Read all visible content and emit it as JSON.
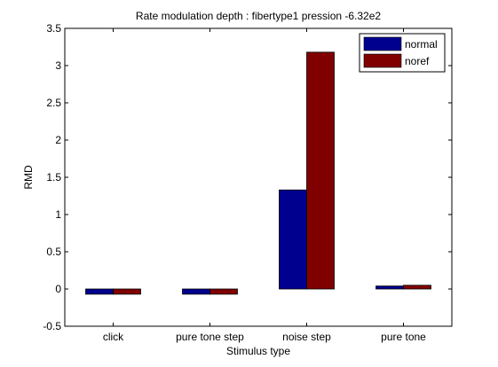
{
  "chart_data": {
    "type": "bar",
    "title": "Rate modulation depth : fibertype1 pression -6.32e2",
    "xlabel": "Stimulus type",
    "ylabel": "RMD",
    "categories": [
      "click",
      "pure tone step",
      "noise step",
      "pure tone"
    ],
    "series": [
      {
        "name": "normal",
        "color": "#00008f",
        "values": [
          -0.07,
          -0.07,
          1.33,
          0.04
        ]
      },
      {
        "name": "noref",
        "color": "#800000",
        "values": [
          -0.07,
          -0.07,
          3.18,
          0.05
        ]
      }
    ],
    "ylim": [
      -0.5,
      3.5
    ],
    "yticks": [
      -0.5,
      0,
      0.5,
      1,
      1.5,
      2,
      2.5,
      3,
      3.5
    ],
    "ytick_labels": [
      "-0.5",
      "0",
      "0.5",
      "1",
      "1.5",
      "2",
      "2.5",
      "3",
      "3.5"
    ],
    "grid": false,
    "legend_position": "top-right"
  }
}
